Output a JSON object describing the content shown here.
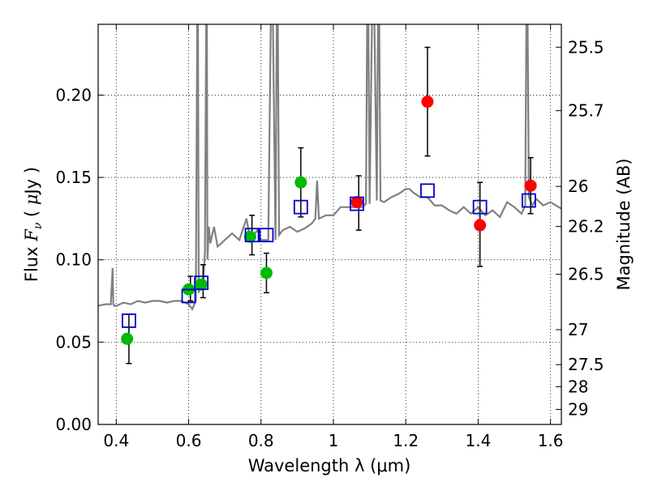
{
  "chart_data": {
    "type": "scatter",
    "xlabel": "Wavelength  λ (μm)",
    "ylabel_parts": [
      "Flux  ",
      "F",
      "ν",
      "  ( ",
      "μ",
      "Jy )"
    ],
    "ylabel_right": "Magnitude (AB)",
    "xlim": [
      0.35,
      1.63
    ],
    "ylim": [
      0.0,
      0.243
    ],
    "grid": true,
    "x_ticks": [
      0.4,
      0.6,
      0.8,
      1.0,
      1.2,
      1.4,
      1.6
    ],
    "x_tick_labels": [
      "0.4",
      "0.6",
      "0.8",
      "1",
      "1.2",
      "1.4",
      "1.6"
    ],
    "y_ticks": [
      0.0,
      0.05,
      0.1,
      0.15,
      0.2
    ],
    "y_tick_labels": [
      "0.00",
      "0.05",
      "0.10",
      "0.15",
      "0.20"
    ],
    "mag_ticks": [
      25.5,
      25.7,
      26,
      26.2,
      26.5,
      27,
      27.5,
      28,
      29
    ],
    "mag_tick_labels": [
      "25.5",
      "25.7",
      "26",
      "26.2",
      "26.5",
      "27",
      "27.5",
      "28",
      "29"
    ],
    "colors": {
      "model": "#808080",
      "green": "#00bb00",
      "red": "#ff0000",
      "box": "#0000cc",
      "errorbar": "#000000"
    },
    "series": [
      {
        "name": "model spectrum",
        "kind": "line",
        "x": [
          0.35,
          0.37,
          0.385,
          0.39,
          0.392,
          0.395,
          0.4,
          0.42,
          0.44,
          0.46,
          0.48,
          0.5,
          0.52,
          0.54,
          0.56,
          0.58,
          0.6,
          0.61,
          0.62,
          0.625,
          0.628,
          0.632,
          0.64,
          0.645,
          0.65,
          0.652,
          0.656,
          0.66,
          0.67,
          0.68,
          0.69,
          0.7,
          0.72,
          0.74,
          0.76,
          0.77,
          0.79,
          0.8,
          0.82,
          0.83,
          0.84,
          0.845,
          0.85,
          0.86,
          0.88,
          0.9,
          0.92,
          0.94,
          0.95,
          0.955,
          0.96,
          0.98,
          1.0,
          1.02,
          1.04,
          1.06,
          1.08,
          1.09,
          1.095,
          1.1,
          1.11,
          1.12,
          1.125,
          1.13,
          1.14,
          1.16,
          1.18,
          1.2,
          1.21,
          1.22,
          1.24,
          1.26,
          1.28,
          1.3,
          1.32,
          1.34,
          1.36,
          1.38,
          1.4,
          1.42,
          1.44,
          1.46,
          1.48,
          1.5,
          1.52,
          1.53,
          1.535,
          1.54,
          1.55,
          1.56,
          1.58,
          1.6,
          1.63
        ],
        "y": [
          0.072,
          0.073,
          0.073,
          0.095,
          0.073,
          0.072,
          0.072,
          0.074,
          0.073,
          0.075,
          0.074,
          0.075,
          0.075,
          0.074,
          0.075,
          0.075,
          0.073,
          0.07,
          0.075,
          0.3,
          0.08,
          0.085,
          0.085,
          0.105,
          0.3,
          0.1,
          0.12,
          0.11,
          0.12,
          0.108,
          0.11,
          0.112,
          0.116,
          0.112,
          0.125,
          0.112,
          0.118,
          0.112,
          0.112,
          0.3,
          0.112,
          0.3,
          0.115,
          0.118,
          0.12,
          0.117,
          0.119,
          0.122,
          0.125,
          0.148,
          0.125,
          0.127,
          0.127,
          0.132,
          0.132,
          0.132,
          0.132,
          0.134,
          0.3,
          0.134,
          0.3,
          0.136,
          0.3,
          0.136,
          0.135,
          0.138,
          0.14,
          0.143,
          0.143,
          0.141,
          0.138,
          0.138,
          0.133,
          0.133,
          0.13,
          0.128,
          0.132,
          0.128,
          0.132,
          0.127,
          0.13,
          0.126,
          0.135,
          0.132,
          0.128,
          0.133,
          0.3,
          0.138,
          0.133,
          0.137,
          0.133,
          0.135,
          0.131
        ]
      },
      {
        "name": "green points",
        "kind": "scatter",
        "x": [
          0.43,
          0.6,
          0.635,
          0.77,
          0.815,
          0.91
        ],
        "y": [
          0.052,
          0.082,
          0.085,
          0.114,
          0.092,
          0.147
        ],
        "err_lo": [
          0.015,
          0.0,
          0.0,
          0.0,
          0.0,
          0.0
        ],
        "err_hi": [
          0.015,
          0.0,
          0.0,
          0.0,
          0.0,
          0.0
        ]
      },
      {
        "name": "red points",
        "kind": "scatter",
        "x": [
          1.065,
          1.26,
          1.405,
          1.545
        ],
        "y": [
          0.135,
          0.196,
          0.121,
          0.145
        ],
        "err_lo": [
          0.0,
          0.0,
          0.0,
          0.0
        ],
        "err_hi": [
          0.0,
          0.0,
          0.0,
          0.0
        ]
      },
      {
        "name": "model band fluxes",
        "kind": "scatter",
        "x": [
          0.435,
          0.6,
          0.635,
          0.775,
          0.815,
          0.91,
          1.065,
          1.26,
          1.405,
          1.54
        ],
        "y": [
          0.063,
          0.078,
          0.086,
          0.115,
          0.115,
          0.132,
          0.134,
          0.142,
          0.132,
          0.136
        ]
      },
      {
        "name": "error bars",
        "kind": "errorbar",
        "x": [
          0.435,
          0.605,
          0.64,
          0.775,
          0.815,
          0.91,
          1.07,
          1.26,
          1.405,
          1.545
        ],
        "y_low": [
          0.037,
          0.075,
          0.077,
          0.103,
          0.08,
          0.126,
          0.118,
          0.163,
          0.096,
          0.128
        ],
        "y_high": [
          0.067,
          0.09,
          0.097,
          0.127,
          0.104,
          0.168,
          0.151,
          0.229,
          0.147,
          0.162
        ]
      }
    ]
  }
}
